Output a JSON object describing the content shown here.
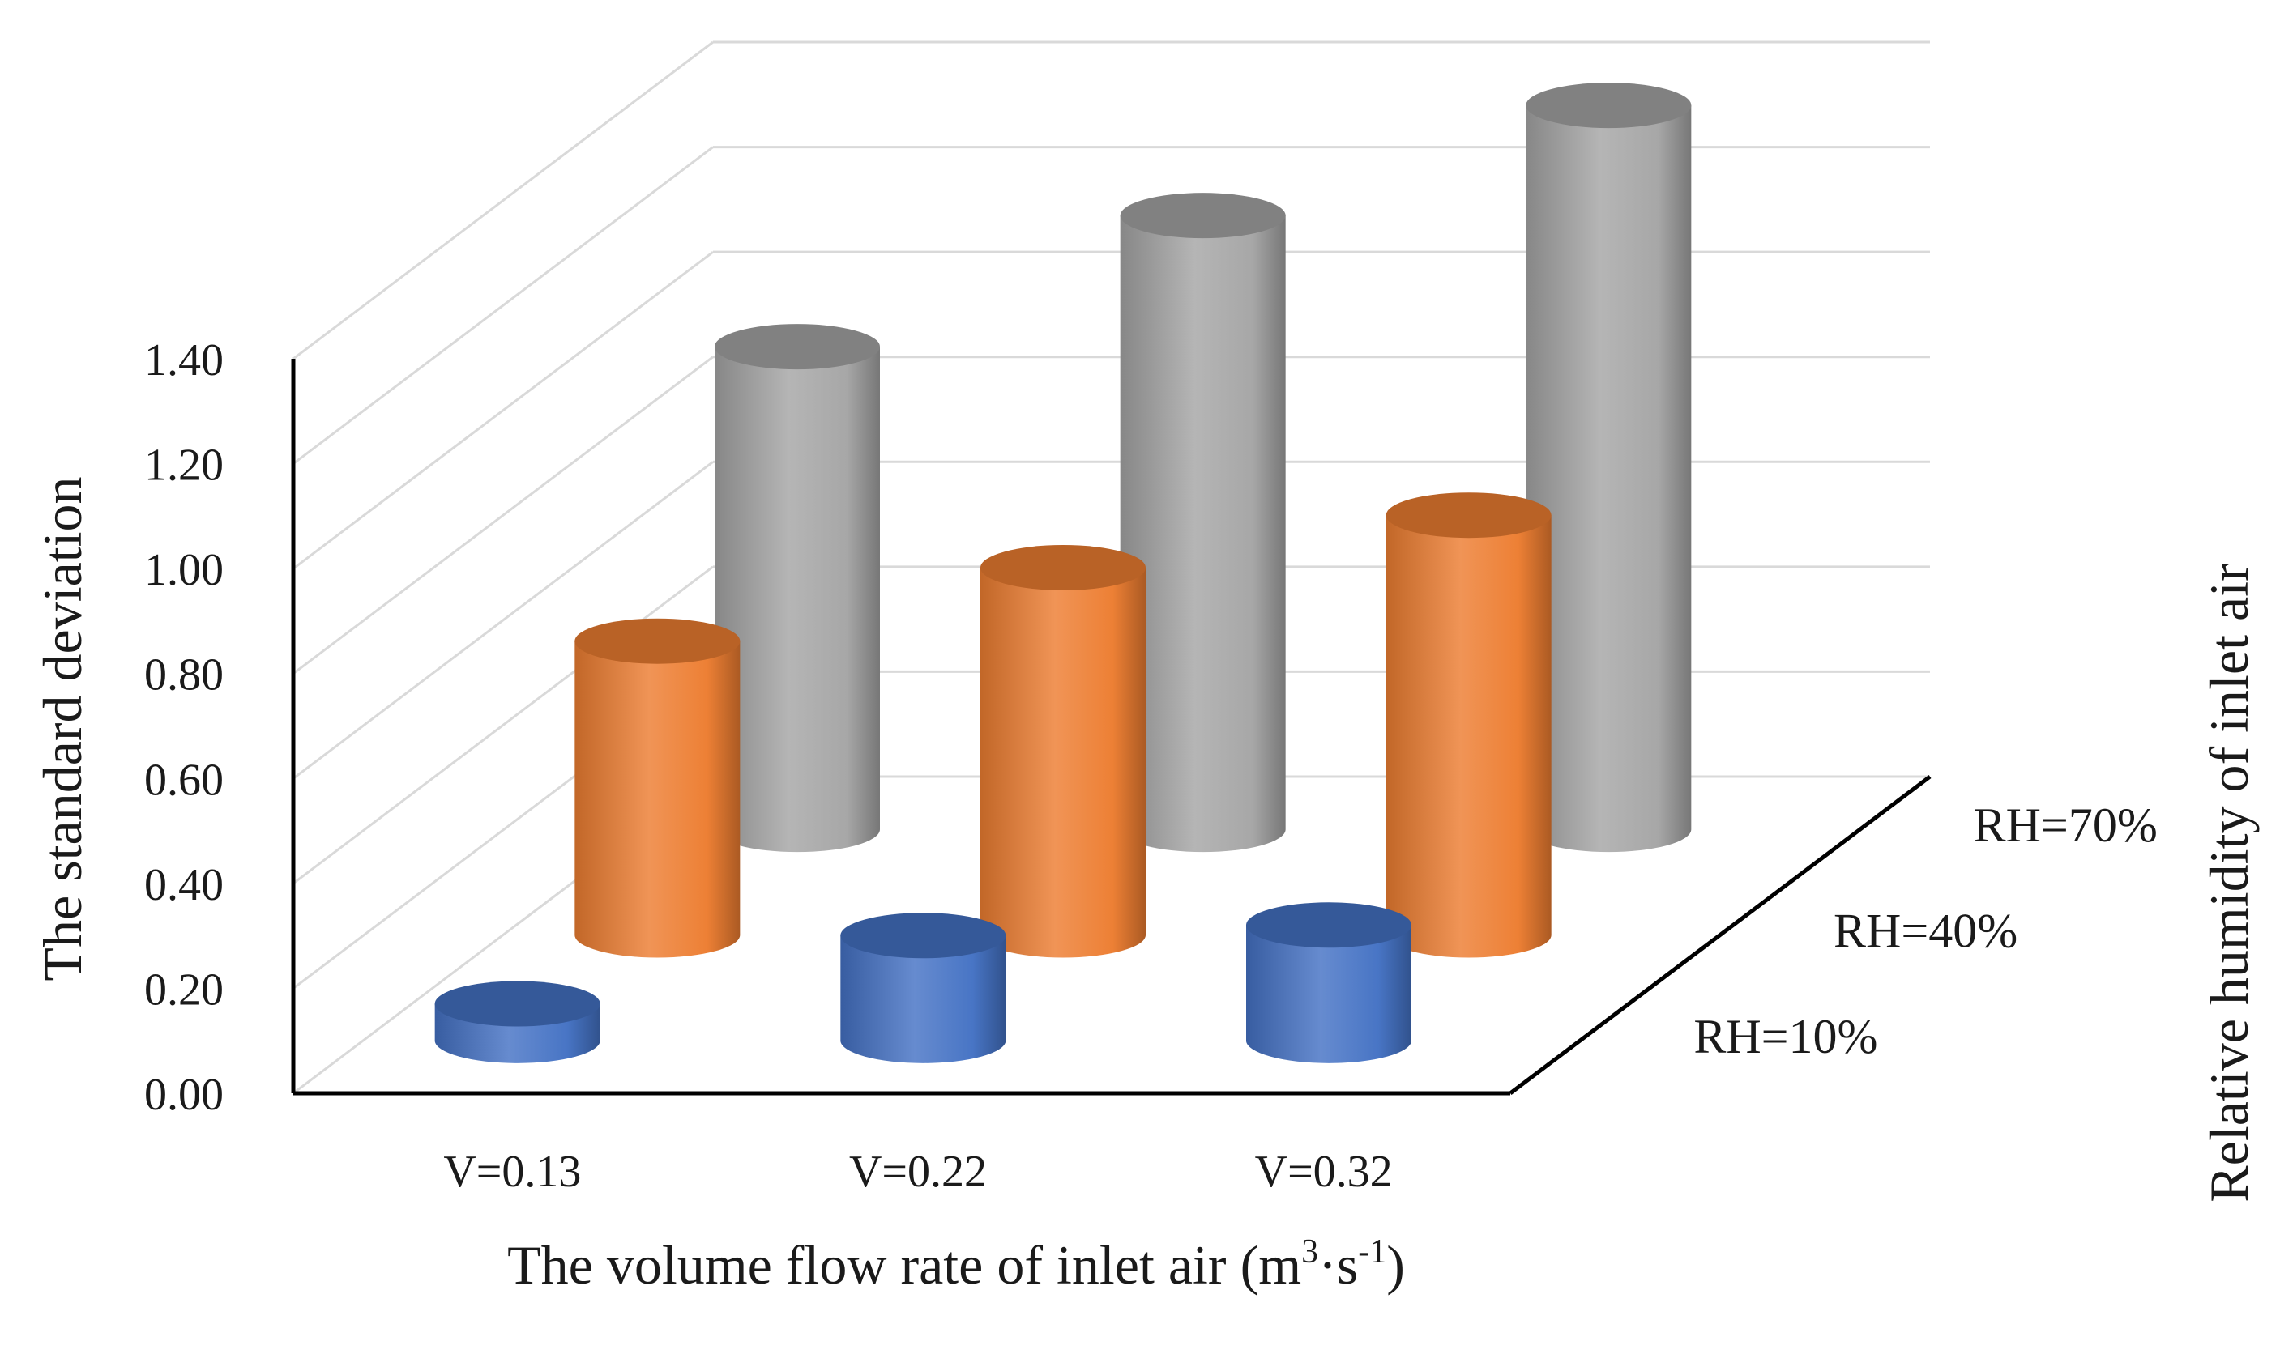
{
  "chart_data": {
    "type": "bar",
    "style": "3d-cylinder",
    "title": "",
    "xlabel": "The volume flow rate of inlet air (m³·s⁻¹)",
    "xlabel_parts": {
      "prefix": "The volume flow rate of inlet air (m",
      "sup1": "3",
      "middle": "·s",
      "sup2": "-1",
      "suffix": ")"
    },
    "ylabel": "The standard deviation",
    "zlabel": "Relative humidity of inlet air",
    "categories": [
      "V=0.13",
      "V=0.22",
      "V=0.32"
    ],
    "ylim": [
      0,
      1.4
    ],
    "yticks": [
      "0.00",
      "0.20",
      "0.40",
      "0.60",
      "0.80",
      "1.00",
      "1.20",
      "1.40"
    ],
    "grid": true,
    "series": [
      {
        "name": "RH=10%",
        "values": [
          0.07,
          0.2,
          0.22
        ],
        "color": "#4472C4"
      },
      {
        "name": "RH=40%",
        "values": [
          0.56,
          0.7,
          0.8
        ],
        "color": "#ED7D31"
      },
      {
        "name": "RH=70%",
        "values": [
          0.92,
          1.17,
          1.38
        ],
        "color": "#A5A5A5"
      }
    ]
  }
}
